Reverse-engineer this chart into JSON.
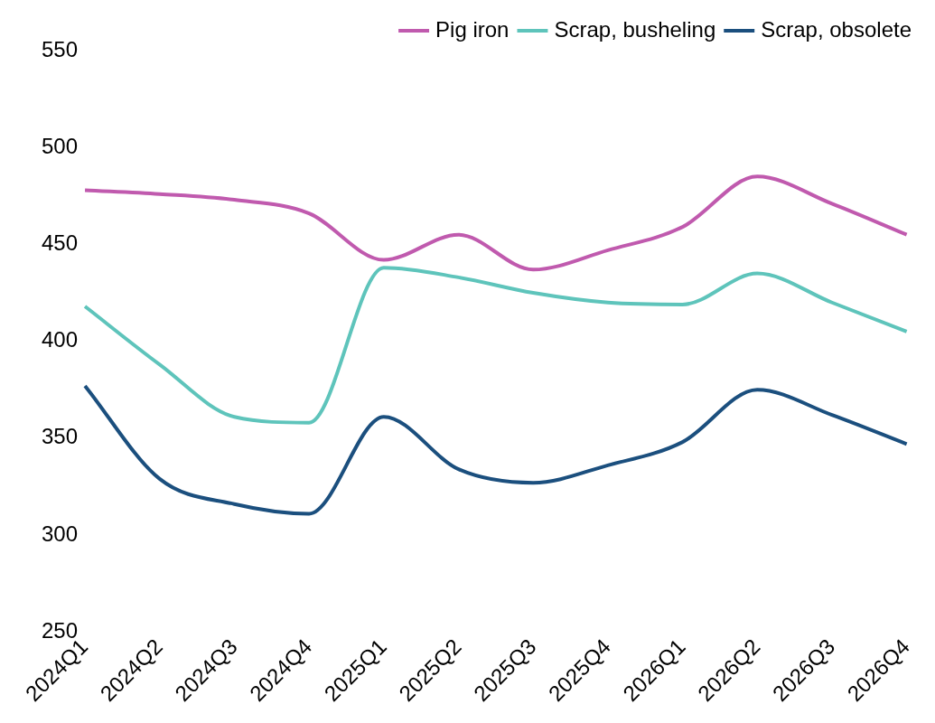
{
  "chart_data": {
    "type": "line",
    "categories": [
      "2024Q1",
      "2024Q2",
      "2024Q3",
      "2024Q4",
      "2025Q1",
      "2025Q2",
      "2025Q3",
      "2025Q4",
      "2026Q1",
      "2026Q2",
      "2026Q3",
      "2026Q4"
    ],
    "series": [
      {
        "name": "Pig iron",
        "color": "#c05aae",
        "values": [
          478,
          476,
          473,
          466,
          442,
          455,
          437,
          447,
          459,
          485,
          471,
          455
        ]
      },
      {
        "name": "Scrap, busheling",
        "color": "#5ec4bb",
        "values": [
          418,
          388,
          361,
          358,
          438,
          433,
          425,
          420,
          419,
          435,
          420,
          405
        ]
      },
      {
        "name": "Scrap, obsolete",
        "color": "#1b4f7e",
        "values": [
          377,
          329,
          316,
          311,
          361,
          334,
          327,
          336,
          348,
          375,
          362,
          347
        ]
      }
    ],
    "ylim": [
      250,
      550
    ],
    "yticks": [
      250,
      300,
      350,
      400,
      450,
      500,
      550
    ],
    "grid": false,
    "legend": "top right",
    "marker": "none",
    "line_style": "solid"
  }
}
